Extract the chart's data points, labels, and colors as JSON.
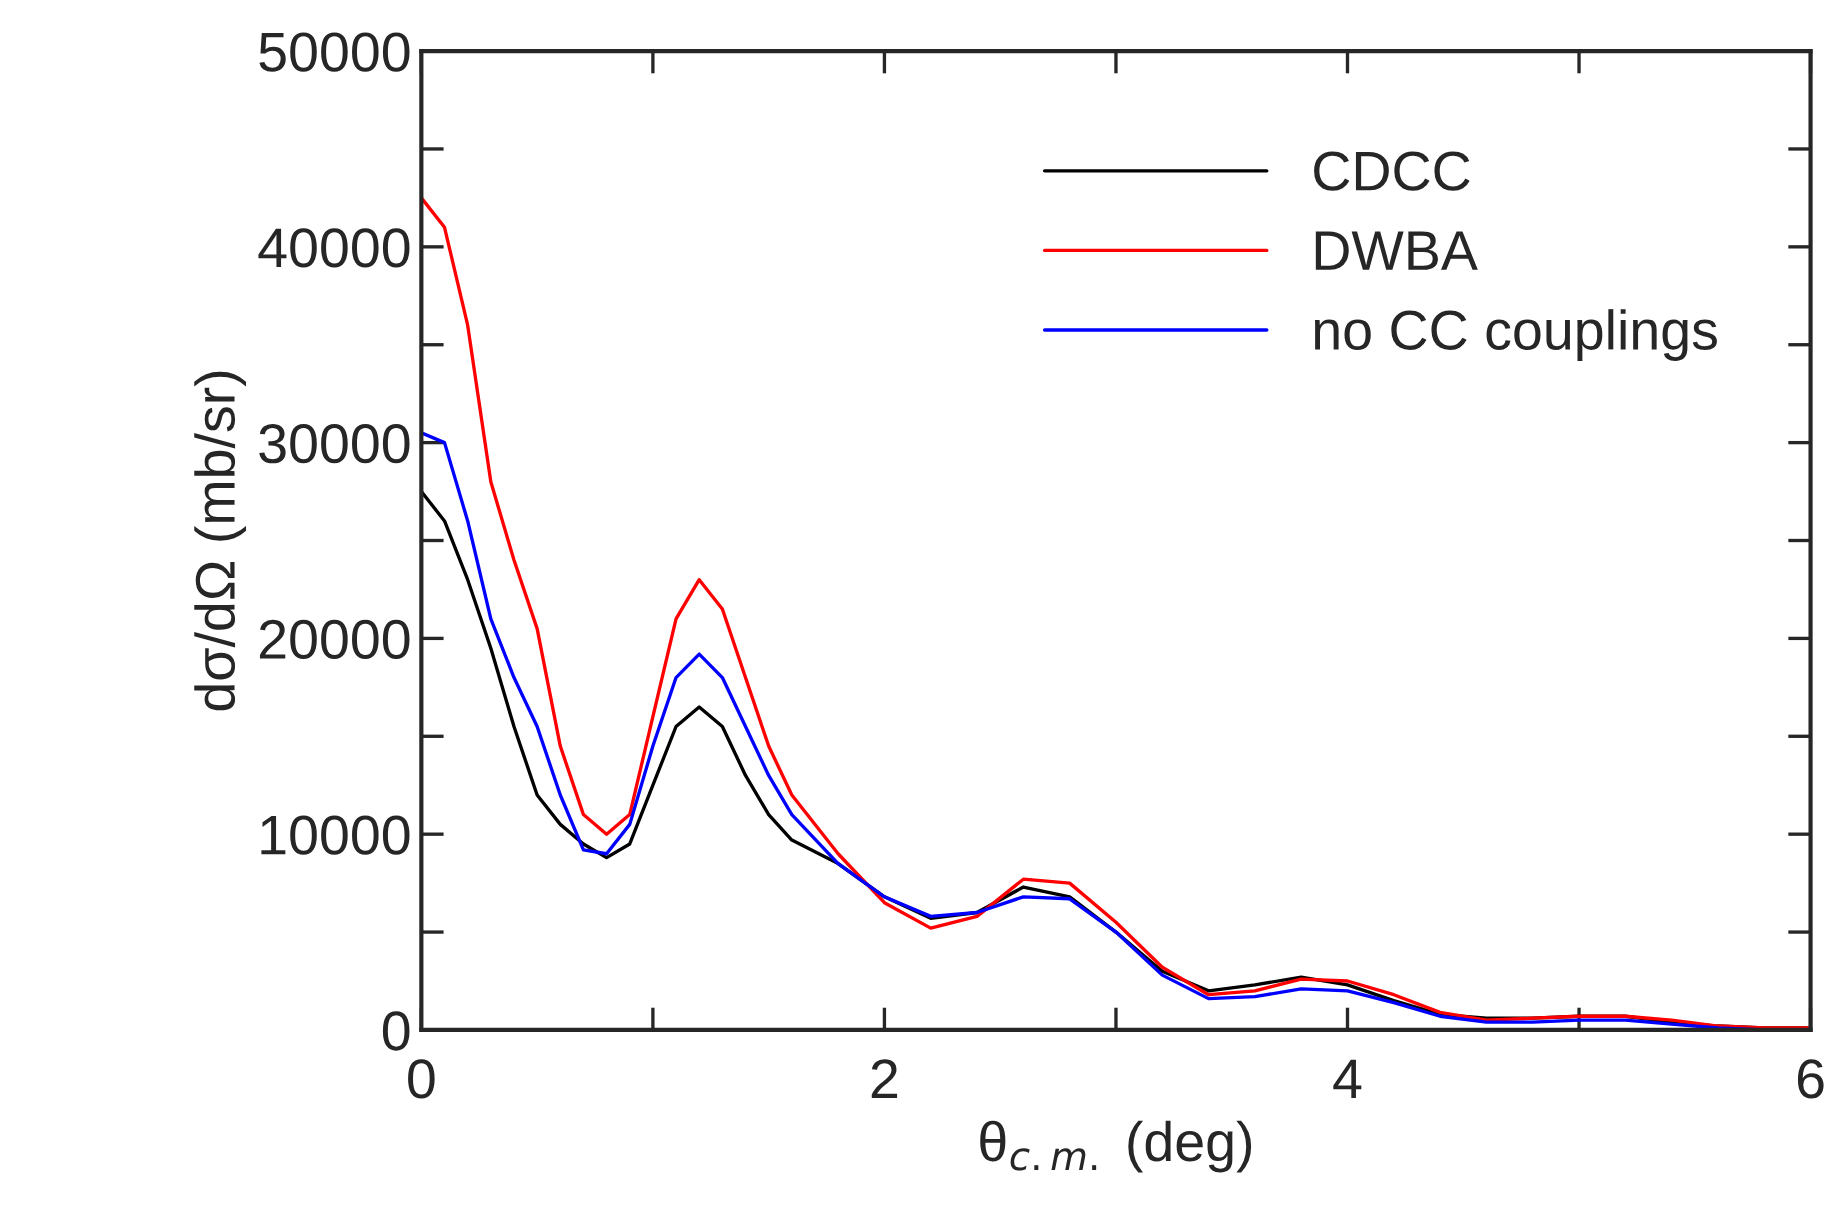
{
  "chart_data": {
    "type": "line",
    "xlabel": "θ$_{c.m.}$ (deg)",
    "ylabel": "dσ/dΩ (mb/sr)",
    "xlim": [
      0,
      6
    ],
    "ylim": [
      0,
      50000
    ],
    "xticks": [
      0,
      {
        "value": 1,
        "label": null
      },
      2,
      {
        "value": 3,
        "label": null
      },
      4,
      {
        "value": 5,
        "label": null
      },
      6
    ],
    "yticks": [
      0,
      {
        "value": 5000,
        "label": null
      },
      10000,
      {
        "value": 15000,
        "label": null
      },
      20000,
      {
        "value": 25000,
        "label": null
      },
      30000,
      {
        "value": 35000,
        "label": null
      },
      40000,
      {
        "value": 45000,
        "label": null
      },
      50000
    ],
    "grid": false,
    "legend": "top right",
    "marker": "none",
    "line_style": "solid",
    "x": [
      0,
      0.1,
      0.2,
      0.3,
      0.4,
      0.5,
      0.6,
      0.7,
      0.8,
      0.9,
      1.0,
      1.1,
      1.2,
      1.3,
      1.4,
      1.5,
      1.6,
      1.8,
      2.0,
      2.2,
      2.4,
      2.6,
      2.8,
      3.0,
      3.2,
      3.4,
      3.6,
      3.8,
      4.0,
      4.2,
      4.4,
      4.6,
      4.8,
      5.0,
      5.2,
      5.4,
      5.6,
      5.8,
      6.0
    ],
    "series": [
      {
        "name": "CDCC",
        "color": "#000000",
        "values": [
          27500,
          26000,
          23000,
          19500,
          15500,
          12000,
          10500,
          9500,
          8800,
          9500,
          12500,
          15500,
          16500,
          15500,
          13000,
          11000,
          9700,
          8500,
          6800,
          5700,
          6000,
          7300,
          6800,
          5000,
          3000,
          2000,
          2300,
          2700,
          2300,
          1500,
          800,
          600,
          600,
          700,
          700,
          400,
          200,
          100,
          100
        ]
      },
      {
        "name": "DWBA",
        "color": "#ff0000",
        "values": [
          42500,
          41000,
          36000,
          28000,
          24000,
          20500,
          14500,
          11000,
          10000,
          11000,
          16000,
          21000,
          23000,
          21500,
          18000,
          14500,
          12000,
          9000,
          6500,
          5200,
          5800,
          7700,
          7500,
          5500,
          3200,
          1800,
          2000,
          2600,
          2500,
          1800,
          900,
          500,
          600,
          700,
          700,
          500,
          200,
          100,
          100
        ]
      },
      {
        "name": "no CC couplings",
        "color": "#0000ff",
        "values": [
          30500,
          30000,
          26000,
          21000,
          18000,
          15500,
          12000,
          9200,
          9000,
          10500,
          14500,
          18000,
          19200,
          18000,
          15500,
          13000,
          11000,
          8500,
          6800,
          5800,
          6000,
          6800,
          6700,
          5000,
          2800,
          1600,
          1700,
          2100,
          2000,
          1400,
          700,
          400,
          400,
          500,
          500,
          300,
          100,
          0,
          0
        ]
      }
    ]
  }
}
